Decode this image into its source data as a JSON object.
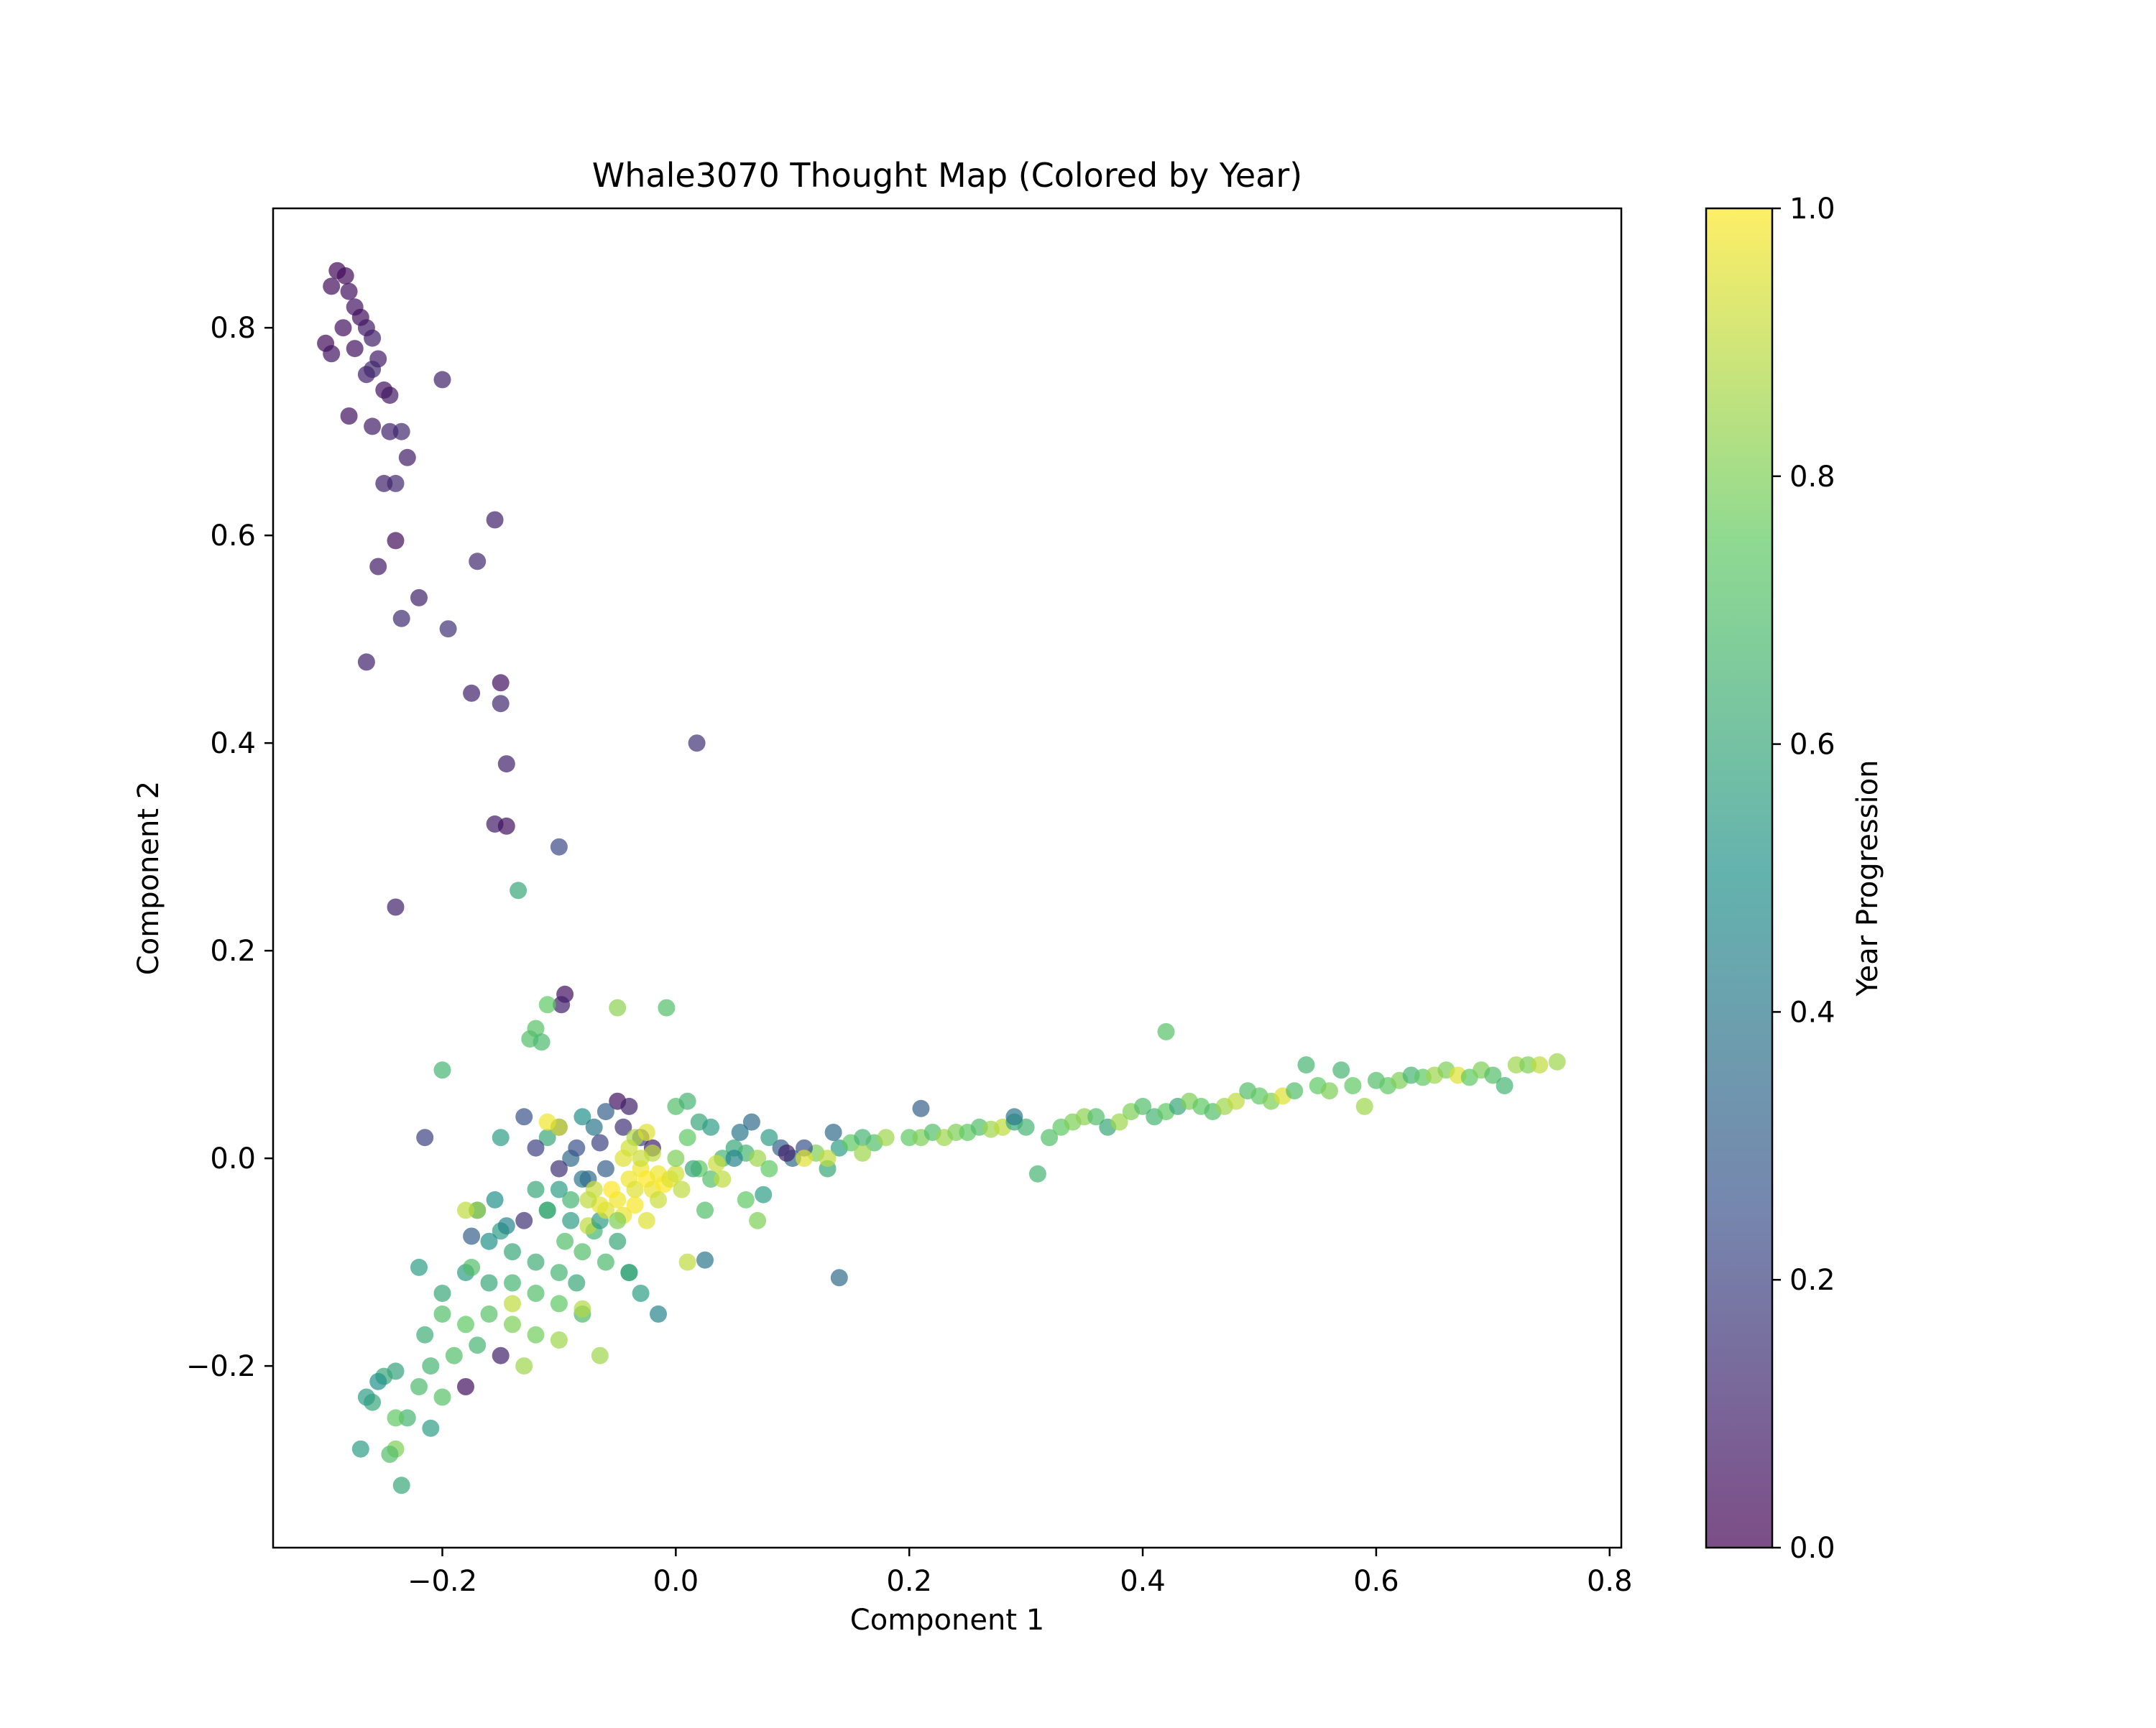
{
  "chart_data": {
    "type": "scatter",
    "title": "Whale3070 Thought Map (Colored by Year)",
    "xlabel": "Component 1",
    "ylabel": "Component 2",
    "xlim": [
      -0.345,
      0.81
    ],
    "ylim": [
      -0.375,
      0.915
    ],
    "xticks": [
      -0.2,
      0.0,
      0.2,
      0.4,
      0.6,
      0.8
    ],
    "yticks": [
      -0.2,
      0.0,
      0.2,
      0.4,
      0.6,
      0.8
    ],
    "xtick_labels": [
      "−0.2",
      "0.0",
      "0.2",
      "0.4",
      "0.6",
      "0.8"
    ],
    "ytick_labels": [
      "−0.2",
      "0.0",
      "0.2",
      "0.4",
      "0.6",
      "0.8"
    ],
    "grid": false,
    "marker": "circle",
    "alpha": 0.7,
    "colormap": "viridis",
    "colormap_stops": [
      "#440154",
      "#3b528b",
      "#21918c",
      "#5ec962",
      "#fde725"
    ],
    "colorbar": {
      "label": "Year Progression",
      "range": [
        0.0,
        1.0
      ],
      "ticks": [
        0.0,
        0.2,
        0.4,
        0.6,
        0.8,
        1.0
      ],
      "tick_labels": [
        "0.0",
        "0.2",
        "0.4",
        "0.6",
        "0.8",
        "1.0"
      ]
    },
    "points": [
      [
        -0.29,
        0.855,
        0.02
      ],
      [
        -0.283,
        0.85,
        0.03
      ],
      [
        -0.295,
        0.84,
        0.04
      ],
      [
        -0.28,
        0.835,
        0.05
      ],
      [
        -0.275,
        0.82,
        0.06
      ],
      [
        -0.27,
        0.81,
        0.04
      ],
      [
        -0.285,
        0.8,
        0.05
      ],
      [
        -0.265,
        0.8,
        0.08
      ],
      [
        -0.26,
        0.79,
        0.09
      ],
      [
        -0.275,
        0.78,
        0.05
      ],
      [
        -0.3,
        0.785,
        0.03
      ],
      [
        -0.295,
        0.775,
        0.06
      ],
      [
        -0.255,
        0.77,
        0.08
      ],
      [
        -0.265,
        0.755,
        0.1
      ],
      [
        -0.26,
        0.76,
        0.12
      ],
      [
        -0.25,
        0.74,
        0.05
      ],
      [
        -0.245,
        0.735,
        0.07
      ],
      [
        -0.2,
        0.75,
        0.1
      ],
      [
        -0.28,
        0.715,
        0.05
      ],
      [
        -0.26,
        0.705,
        0.08
      ],
      [
        -0.245,
        0.7,
        0.1
      ],
      [
        -0.235,
        0.7,
        0.12
      ],
      [
        -0.23,
        0.675,
        0.08
      ],
      [
        -0.25,
        0.65,
        0.1
      ],
      [
        -0.24,
        0.65,
        0.12
      ],
      [
        -0.24,
        0.595,
        0.04
      ],
      [
        -0.155,
        0.615,
        0.1
      ],
      [
        -0.17,
        0.575,
        0.12
      ],
      [
        -0.255,
        0.57,
        0.08
      ],
      [
        -0.22,
        0.54,
        0.1
      ],
      [
        -0.235,
        0.52,
        0.13
      ],
      [
        -0.195,
        0.51,
        0.15
      ],
      [
        -0.265,
        0.478,
        0.1
      ],
      [
        -0.15,
        0.458,
        0.05
      ],
      [
        -0.175,
        0.448,
        0.1
      ],
      [
        -0.15,
        0.438,
        0.12
      ],
      [
        0.018,
        0.4,
        0.15
      ],
      [
        -0.145,
        0.38,
        0.1
      ],
      [
        -0.155,
        0.322,
        0.08
      ],
      [
        -0.145,
        0.32,
        0.05
      ],
      [
        -0.1,
        0.3,
        0.22
      ],
      [
        -0.135,
        0.258,
        0.6
      ],
      [
        -0.24,
        0.242,
        0.1
      ],
      [
        -0.095,
        0.158,
        0.05
      ],
      [
        -0.098,
        0.148,
        0.1
      ],
      [
        -0.11,
        0.148,
        0.75
      ],
      [
        -0.05,
        0.145,
        0.82
      ],
      [
        -0.008,
        0.145,
        0.7
      ],
      [
        -0.12,
        0.125,
        0.72
      ],
      [
        -0.125,
        0.115,
        0.7
      ],
      [
        -0.115,
        0.112,
        0.68
      ],
      [
        0.42,
        0.122,
        0.72
      ],
      [
        -0.2,
        0.085,
        0.65
      ],
      [
        -0.215,
        0.02,
        0.2
      ],
      [
        -0.05,
        0.055,
        0.05
      ],
      [
        -0.04,
        0.05,
        0.1
      ],
      [
        -0.06,
        0.045,
        0.3
      ],
      [
        -0.08,
        0.04,
        0.5
      ],
      [
        -0.07,
        0.03,
        0.4
      ],
      [
        -0.1,
        0.03,
        0.3
      ],
      [
        -0.11,
        0.02,
        0.6
      ],
      [
        -0.12,
        0.01,
        0.2
      ],
      [
        -0.09,
        0.0,
        0.35
      ],
      [
        -0.1,
        -0.01,
        0.15
      ],
      [
        -0.08,
        -0.02,
        0.4
      ],
      [
        -0.06,
        -0.01,
        0.3
      ],
      [
        -0.03,
        0.02,
        0.2
      ],
      [
        -0.02,
        0.01,
        0.1
      ],
      [
        -0.13,
        0.04,
        0.25
      ],
      [
        -0.12,
        -0.03,
        0.6
      ],
      [
        -0.11,
        -0.05,
        0.7
      ],
      [
        -0.09,
        -0.06,
        0.55
      ],
      [
        -0.07,
        -0.07,
        0.65
      ],
      [
        -0.05,
        -0.08,
        0.6
      ],
      [
        -0.13,
        -0.06,
        0.15
      ],
      [
        -0.15,
        -0.07,
        0.55
      ],
      [
        -0.17,
        -0.05,
        0.45
      ],
      [
        -0.16,
        -0.08,
        0.5
      ],
      [
        -0.14,
        -0.09,
        0.6
      ],
      [
        -0.12,
        -0.1,
        0.62
      ],
      [
        -0.1,
        -0.11,
        0.65
      ],
      [
        -0.08,
        -0.09,
        0.7
      ],
      [
        -0.06,
        -0.1,
        0.68
      ],
      [
        -0.04,
        -0.11,
        0.6
      ],
      [
        -0.14,
        -0.12,
        0.65
      ],
      [
        -0.12,
        -0.13,
        0.7
      ],
      [
        -0.1,
        -0.14,
        0.75
      ],
      [
        -0.08,
        -0.15,
        0.68
      ],
      [
        -0.16,
        -0.12,
        0.6
      ],
      [
        -0.18,
        -0.11,
        0.55
      ],
      [
        -0.2,
        -0.13,
        0.6
      ],
      [
        -0.22,
        -0.105,
        0.55
      ],
      [
        -0.215,
        -0.17,
        0.62
      ],
      [
        -0.2,
        -0.15,
        0.7
      ],
      [
        -0.18,
        -0.16,
        0.75
      ],
      [
        -0.16,
        -0.15,
        0.72
      ],
      [
        -0.14,
        -0.16,
        0.8
      ],
      [
        -0.12,
        -0.17,
        0.78
      ],
      [
        -0.1,
        -0.175,
        0.85
      ],
      [
        -0.17,
        -0.18,
        0.65
      ],
      [
        -0.19,
        -0.19,
        0.7
      ],
      [
        -0.21,
        -0.2,
        0.65
      ],
      [
        -0.15,
        -0.19,
        0.1
      ],
      [
        -0.18,
        -0.22,
        0.05
      ],
      [
        -0.22,
        -0.22,
        0.68
      ],
      [
        -0.2,
        -0.23,
        0.72
      ],
      [
        -0.24,
        -0.205,
        0.58
      ],
      [
        -0.25,
        -0.21,
        0.6
      ],
      [
        -0.23,
        -0.25,
        0.65
      ],
      [
        -0.21,
        -0.26,
        0.55
      ],
      [
        -0.24,
        -0.25,
        0.75
      ],
      [
        -0.26,
        -0.235,
        0.6
      ],
      [
        -0.255,
        -0.215,
        0.5
      ],
      [
        -0.265,
        -0.23,
        0.55
      ],
      [
        -0.27,
        -0.28,
        0.55
      ],
      [
        -0.24,
        -0.28,
        0.8
      ],
      [
        -0.235,
        -0.315,
        0.6
      ],
      [
        -0.245,
        -0.285,
        0.7
      ],
      [
        -0.14,
        -0.14,
        0.9
      ],
      [
        -0.13,
        -0.2,
        0.85
      ],
      [
        -0.065,
        -0.19,
        0.85
      ],
      [
        -0.08,
        -0.145,
        0.88
      ],
      [
        -0.075,
        -0.065,
        0.9
      ],
      [
        -0.17,
        -0.05,
        0.85
      ],
      [
        -0.11,
        -0.05,
        0.6
      ],
      [
        -0.1,
        -0.03,
        0.55
      ],
      [
        -0.09,
        -0.04,
        0.65
      ],
      [
        -0.095,
        -0.08,
        0.7
      ],
      [
        -0.085,
        -0.12,
        0.6
      ],
      [
        -0.065,
        -0.06,
        0.55
      ],
      [
        -0.075,
        -0.02,
        0.35
      ],
      [
        -0.085,
        0.01,
        0.25
      ],
      [
        -0.065,
        0.015,
        0.2
      ],
      [
        -0.045,
        0.03,
        0.15
      ],
      [
        -0.03,
        -0.13,
        0.55
      ],
      [
        -0.04,
        -0.11,
        0.6
      ],
      [
        -0.015,
        -0.15,
        0.45
      ],
      [
        0.01,
        -0.1,
        0.9
      ],
      [
        0.025,
        -0.098,
        0.4
      ],
      [
        -0.15,
        0.02,
        0.55
      ],
      [
        -0.155,
        -0.04,
        0.5
      ],
      [
        -0.145,
        -0.065,
        0.45
      ],
      [
        -0.175,
        -0.075,
        0.3
      ],
      [
        -0.175,
        -0.105,
        0.7
      ],
      [
        -0.045,
        0.0,
        0.95
      ],
      [
        -0.04,
        -0.02,
        0.98
      ],
      [
        -0.035,
        -0.03,
        0.95
      ],
      [
        -0.03,
        -0.01,
        0.98
      ],
      [
        -0.025,
        -0.02,
        1.0
      ],
      [
        -0.02,
        -0.03,
        0.97
      ],
      [
        -0.015,
        -0.015,
        0.98
      ],
      [
        -0.01,
        -0.025,
        1.0
      ],
      [
        -0.005,
        -0.02,
        0.95
      ],
      [
        0.0,
        -0.015,
        0.93
      ],
      [
        -0.05,
        -0.04,
        0.98
      ],
      [
        -0.06,
        -0.05,
        0.95
      ],
      [
        -0.055,
        -0.03,
        1.0
      ],
      [
        -0.045,
        -0.055,
        0.97
      ],
      [
        -0.035,
        -0.045,
        0.99
      ],
      [
        -0.03,
        0.0,
        0.92
      ],
      [
        -0.02,
        0.005,
        0.9
      ],
      [
        -0.04,
        0.01,
        0.93
      ],
      [
        -0.07,
        -0.03,
        0.92
      ],
      [
        -0.065,
        -0.045,
        0.96
      ],
      [
        -0.075,
        -0.04,
        0.9
      ],
      [
        -0.025,
        -0.06,
        0.95
      ],
      [
        -0.015,
        -0.04,
        0.92
      ],
      [
        0.005,
        -0.03,
        0.9
      ],
      [
        -0.035,
        0.02,
        0.88
      ],
      [
        -0.025,
        0.025,
        0.95
      ],
      [
        -0.11,
        0.035,
        0.98
      ],
      [
        -0.1,
        0.03,
        0.95
      ],
      [
        -0.18,
        -0.05,
        0.9
      ],
      [
        -0.05,
        -0.06,
        0.8
      ],
      [
        0.0,
        0.05,
        0.7
      ],
      [
        0.01,
        0.055,
        0.65
      ],
      [
        0.02,
        0.035,
        0.6
      ],
      [
        0.03,
        0.03,
        0.55
      ],
      [
        0.01,
        0.02,
        0.75
      ],
      [
        0.0,
        0.0,
        0.8
      ],
      [
        0.02,
        -0.01,
        0.75
      ],
      [
        0.03,
        -0.02,
        0.7
      ],
      [
        0.04,
        0.0,
        0.65
      ],
      [
        0.05,
        0.01,
        0.6
      ],
      [
        0.06,
        0.005,
        0.65
      ],
      [
        0.07,
        0.0,
        0.85
      ],
      [
        0.08,
        -0.01,
        0.75
      ],
      [
        0.09,
        0.01,
        0.3
      ],
      [
        0.1,
        0.0,
        0.35
      ],
      [
        0.12,
        0.005,
        0.8
      ],
      [
        0.13,
        -0.01,
        0.6
      ],
      [
        0.14,
        0.01,
        0.55
      ],
      [
        0.15,
        0.015,
        0.75
      ],
      [
        0.16,
        0.02,
        0.65
      ],
      [
        0.17,
        0.015,
        0.7
      ],
      [
        0.18,
        0.02,
        0.85
      ],
      [
        0.2,
        0.02,
        0.75
      ],
      [
        0.21,
        0.02,
        0.8
      ],
      [
        0.22,
        0.025,
        0.7
      ],
      [
        0.23,
        0.02,
        0.85
      ],
      [
        0.24,
        0.025,
        0.8
      ],
      [
        0.25,
        0.025,
        0.75
      ],
      [
        0.26,
        0.03,
        0.7
      ],
      [
        0.27,
        0.028,
        0.85
      ],
      [
        0.28,
        0.03,
        0.9
      ],
      [
        0.29,
        0.035,
        0.6
      ],
      [
        0.3,
        0.03,
        0.65
      ],
      [
        0.31,
        -0.015,
        0.65
      ],
      [
        0.32,
        0.02,
        0.7
      ],
      [
        0.33,
        0.03,
        0.75
      ],
      [
        0.34,
        0.035,
        0.8
      ],
      [
        0.35,
        0.04,
        0.82
      ],
      [
        0.36,
        0.04,
        0.7
      ],
      [
        0.37,
        0.03,
        0.6
      ],
      [
        0.38,
        0.035,
        0.85
      ],
      [
        0.39,
        0.045,
        0.8
      ],
      [
        0.4,
        0.05,
        0.7
      ],
      [
        0.41,
        0.04,
        0.65
      ],
      [
        0.42,
        0.045,
        0.75
      ],
      [
        0.43,
        0.05,
        0.6
      ],
      [
        0.44,
        0.055,
        0.8
      ],
      [
        0.45,
        0.05,
        0.75
      ],
      [
        0.46,
        0.045,
        0.7
      ],
      [
        0.47,
        0.05,
        0.85
      ],
      [
        0.48,
        0.055,
        0.9
      ],
      [
        0.49,
        0.065,
        0.7
      ],
      [
        0.5,
        0.06,
        0.75
      ],
      [
        0.51,
        0.055,
        0.8
      ],
      [
        0.52,
        0.06,
        0.95
      ],
      [
        0.53,
        0.065,
        0.7
      ],
      [
        0.54,
        0.09,
        0.65
      ],
      [
        0.55,
        0.07,
        0.75
      ],
      [
        0.56,
        0.065,
        0.8
      ],
      [
        0.57,
        0.085,
        0.65
      ],
      [
        0.58,
        0.07,
        0.75
      ],
      [
        0.59,
        0.05,
        0.85
      ],
      [
        0.6,
        0.075,
        0.7
      ],
      [
        0.61,
        0.07,
        0.75
      ],
      [
        0.62,
        0.075,
        0.8
      ],
      [
        0.63,
        0.08,
        0.65
      ],
      [
        0.64,
        0.078,
        0.75
      ],
      [
        0.65,
        0.08,
        0.85
      ],
      [
        0.66,
        0.085,
        0.8
      ],
      [
        0.67,
        0.08,
        0.95
      ],
      [
        0.68,
        0.078,
        0.75
      ],
      [
        0.69,
        0.085,
        0.8
      ],
      [
        0.7,
        0.08,
        0.7
      ],
      [
        0.71,
        0.07,
        0.65
      ],
      [
        0.72,
        0.09,
        0.85
      ],
      [
        0.73,
        0.09,
        0.8
      ],
      [
        0.74,
        0.09,
        0.9
      ],
      [
        0.755,
        0.093,
        0.85
      ],
      [
        0.025,
        -0.05,
        0.7
      ],
      [
        0.06,
        -0.04,
        0.75
      ],
      [
        0.07,
        -0.06,
        0.8
      ],
      [
        0.075,
        -0.035,
        0.55
      ],
      [
        0.04,
        -0.02,
        0.9
      ],
      [
        0.015,
        -0.01,
        0.6
      ],
      [
        0.05,
        0.0,
        0.45
      ],
      [
        0.065,
        0.035,
        0.35
      ],
      [
        0.055,
        0.025,
        0.4
      ],
      [
        0.08,
        0.02,
        0.55
      ],
      [
        0.095,
        0.005,
        0.1
      ],
      [
        0.11,
        0.01,
        0.25
      ],
      [
        0.135,
        0.025,
        0.35
      ],
      [
        0.14,
        -0.115,
        0.35
      ],
      [
        0.21,
        0.048,
        0.3
      ],
      [
        0.29,
        0.04,
        0.4
      ],
      [
        0.11,
        0.0,
        0.95
      ],
      [
        0.13,
        0.0,
        0.9
      ],
      [
        0.16,
        0.005,
        0.85
      ],
      [
        0.035,
        -0.005,
        0.92
      ]
    ]
  }
}
